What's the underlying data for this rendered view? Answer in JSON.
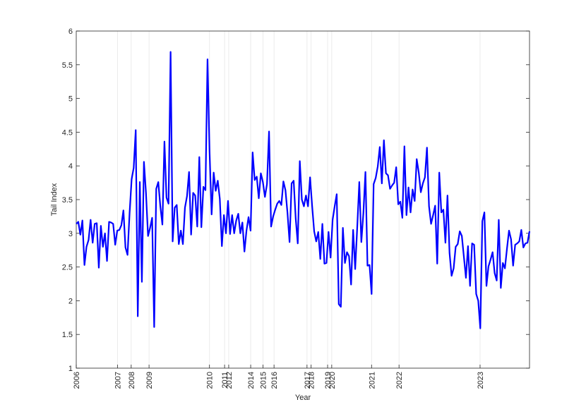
{
  "chart_data": {
    "type": "line",
    "xlabel": "Year",
    "ylabel": "Tail Index",
    "ylim": [
      1,
      6
    ],
    "xlim": [
      0,
      330
    ],
    "yticks": [
      1,
      1.5,
      2,
      2.5,
      3,
      3.5,
      4,
      4.5,
      5,
      5.5,
      6
    ],
    "ytick_labels": [
      "1",
      "1.5",
      "2",
      "2.5",
      "3",
      "3.5",
      "4",
      "4.5",
      "5",
      "5.5",
      "6"
    ],
    "x_ticks": [
      {
        "label": "2006",
        "x": 0
      },
      {
        "label": "2007",
        "x": 30
      },
      {
        "label": "2008",
        "x": 40
      },
      {
        "label": "2009",
        "x": 53
      },
      {
        "label": "2010",
        "x": 97
      },
      {
        "label": "2011",
        "x": 108
      },
      {
        "label": "2012",
        "x": 111
      },
      {
        "label": "2014",
        "x": 127
      },
      {
        "label": "2015",
        "x": 136
      },
      {
        "label": "2016",
        "x": 144
      },
      {
        "label": "2017",
        "x": 168
      },
      {
        "label": "2018",
        "x": 171
      },
      {
        "label": "2019",
        "x": 183
      },
      {
        "label": "2020",
        "x": 186
      },
      {
        "label": "2021",
        "x": 215
      },
      {
        "label": "2022",
        "x": 235
      },
      {
        "label": "2023",
        "x": 294
      }
    ],
    "grid": "vertical lines at year ticks",
    "line_color": "#0000ff",
    "series": [
      {
        "values": [
          3.14,
          3.17,
          2.98,
          3.19,
          2.53,
          2.8,
          2.9,
          3.2,
          2.86,
          3.14,
          3.15,
          2.49,
          3.11,
          2.8,
          3.0,
          2.59,
          3.17,
          3.16,
          3.14,
          2.83,
          3.04,
          3.05,
          3.12,
          3.34,
          2.79,
          2.68,
          3.3,
          3.8,
          3.97,
          4.53,
          1.77,
          3.76,
          2.28,
          4.06,
          3.6,
          2.96,
          3.08,
          3.23,
          1.61,
          3.66,
          3.76,
          3.4,
          3.13,
          4.36,
          3.53,
          3.44,
          5.69,
          2.88,
          3.38,
          3.42,
          2.84,
          3.04,
          2.84,
          3.38,
          3.55,
          3.91,
          2.98,
          3.6,
          3.56,
          3.1,
          4.13,
          3.09,
          3.69,
          3.64,
          5.58,
          4.21,
          3.28,
          3.9,
          3.63,
          3.78,
          3.51,
          2.81,
          3.27,
          3.0,
          3.48,
          2.99,
          3.27,
          3.0,
          3.19,
          3.29,
          3.0,
          3.16,
          2.73,
          3.04,
          3.24,
          3.04,
          4.2,
          3.79,
          3.84,
          3.52,
          3.89,
          3.76,
          3.54,
          3.73,
          4.51,
          3.1,
          3.25,
          3.35,
          3.44,
          3.48,
          3.42,
          3.77,
          3.64,
          3.3,
          2.87,
          3.74,
          3.78,
          3.22,
          2.85,
          4.07,
          3.5,
          3.4,
          3.56,
          3.4,
          3.83,
          3.41,
          3.03,
          2.88,
          3.02,
          2.62,
          3.14,
          2.55,
          2.56,
          3.02,
          2.64,
          3.2,
          3.4,
          3.58,
          1.95,
          1.91,
          3.08,
          2.56,
          2.72,
          2.66,
          2.24,
          3.05,
          2.47,
          3.09,
          3.76,
          2.87,
          3.3,
          3.91,
          2.52,
          2.53,
          2.1,
          3.73,
          3.82,
          3.99,
          4.28,
          3.74,
          4.38,
          3.89,
          3.86,
          3.66,
          3.71,
          3.75,
          3.98,
          3.43,
          3.47,
          3.23,
          4.29,
          3.27,
          3.68,
          3.31,
          3.65,
          3.48,
          4.1,
          3.9,
          3.61,
          3.74,
          3.83,
          4.27,
          3.4,
          3.14,
          3.27,
          3.41,
          2.55,
          3.9,
          3.31,
          3.35,
          2.86,
          3.56,
          2.71,
          2.37,
          2.48,
          2.8,
          2.84,
          3.03,
          2.96,
          2.65,
          2.34,
          2.81,
          2.22,
          2.85,
          2.83,
          2.1,
          2.0,
          1.59,
          3.18,
          3.31,
          2.22,
          2.51,
          2.61,
          2.72,
          2.41,
          2.3,
          3.2,
          2.19,
          2.56,
          2.48,
          2.77,
          3.04,
          2.91,
          2.52,
          2.83,
          2.85,
          2.88,
          3.05,
          2.79,
          2.85,
          2.86,
          3.03
        ]
      }
    ]
  }
}
